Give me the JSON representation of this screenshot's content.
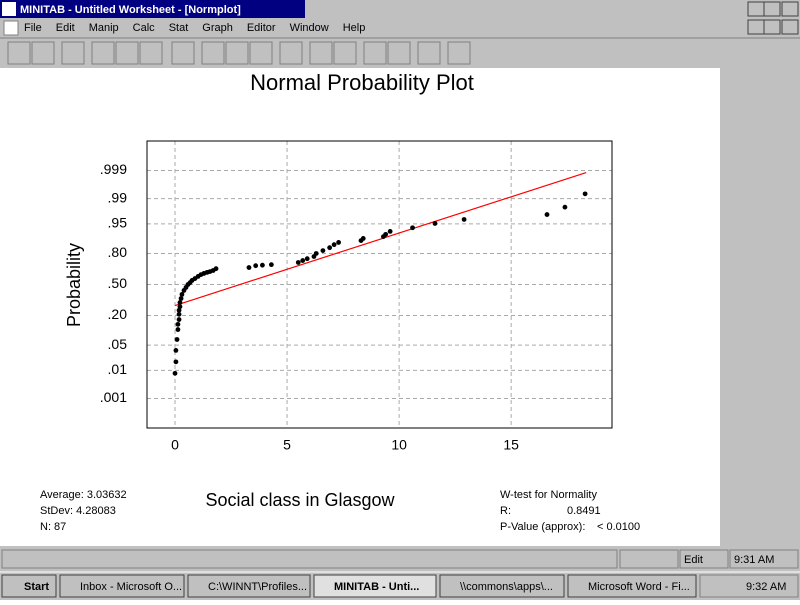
{
  "window": {
    "title": "MINITAB - Untitled Worksheet - [Normplot]",
    "menu": [
      "File",
      "Edit",
      "Manip",
      "Calc",
      "Stat",
      "Graph",
      "Editor",
      "Window",
      "Help"
    ]
  },
  "chart_data": {
    "type": "scatter",
    "title": "Normal Probability Plot",
    "x_label": "Social class in Glasgow",
    "y_label": "Probability",
    "x": [
      0,
      0.04,
      0.04,
      0.09,
      0.13,
      0.13,
      0.18,
      0.18,
      0.18,
      0.22,
      0.22,
      0.27,
      0.31,
      0.4,
      0.49,
      0.58,
      0.67,
      0.76,
      0.89,
      1.03,
      1.16,
      1.29,
      1.43,
      1.56,
      1.7,
      1.83,
      3.3,
      3.6,
      3.9,
      4.3,
      5.5,
      5.7,
      5.9,
      6.2,
      6.3,
      6.6,
      6.9,
      7.1,
      7.3,
      8.3,
      8.4,
      9.3,
      9.4,
      9.6,
      10.6,
      11.6,
      12.9,
      16.6,
      17.4,
      18.3
    ],
    "values": [
      0.008,
      0.018,
      0.037,
      0.068,
      0.111,
      0.14,
      0.171,
      0.209,
      0.242,
      0.274,
      0.312,
      0.352,
      0.394,
      0.436,
      0.468,
      0.5,
      0.52,
      0.544,
      0.564,
      0.587,
      0.606,
      0.618,
      0.629,
      0.637,
      0.648,
      0.666,
      0.677,
      0.695,
      0.7,
      0.705,
      0.725,
      0.742,
      0.758,
      0.776,
      0.8,
      0.821,
      0.841,
      0.86,
      0.873,
      0.883,
      0.894,
      0.903,
      0.913,
      0.925,
      0.938,
      0.951,
      0.961,
      0.971,
      0.982,
      0.993
    ],
    "color": "#000000",
    "fit_line": {
      "x": [
        0,
        18.35
      ],
      "values": [
        0.284,
        0.9988
      ],
      "color": "#ff0000"
    },
    "xlim": [
      -1.25,
      19.5
    ],
    "xticks": [
      0,
      5,
      10,
      15
    ],
    "ylim": [
      5e-05,
      0.99995
    ],
    "yscale": "probability",
    "yticks": [
      {
        "value": 0.001,
        "label": ".001"
      },
      {
        "value": 0.01,
        "label": ".01"
      },
      {
        "value": 0.05,
        "label": ".05"
      },
      {
        "value": 0.2,
        "label": ".20"
      },
      {
        "value": 0.5,
        "label": ".50"
      },
      {
        "value": 0.8,
        "label": ".80"
      },
      {
        "value": 0.95,
        "label": ".95"
      },
      {
        "value": 0.99,
        "label": ".99"
      },
      {
        "value": 0.999,
        "label": ".999"
      }
    ],
    "grid": true,
    "stats": {
      "average": "Average: 3.03632",
      "stdev": "StDev: 4.28083",
      "n": "N: 87",
      "test": "W-test for Normality",
      "r_label": "R:",
      "r_value": "0.8491",
      "p_label": "P-Value (approx):",
      "p_value": "< 0.0100"
    }
  },
  "status_bar": {
    "mode": "Edit",
    "time": "9:31 AM"
  },
  "taskbar": {
    "start": "Start",
    "tasks": [
      "Inbox - Microsoft O...",
      "C:\\WINNT\\Profiles...",
      "MINITAB - Unti...",
      "\\\\commons\\apps\\...",
      "Microsoft Word - Fi..."
    ],
    "time": "9:32 AM"
  }
}
